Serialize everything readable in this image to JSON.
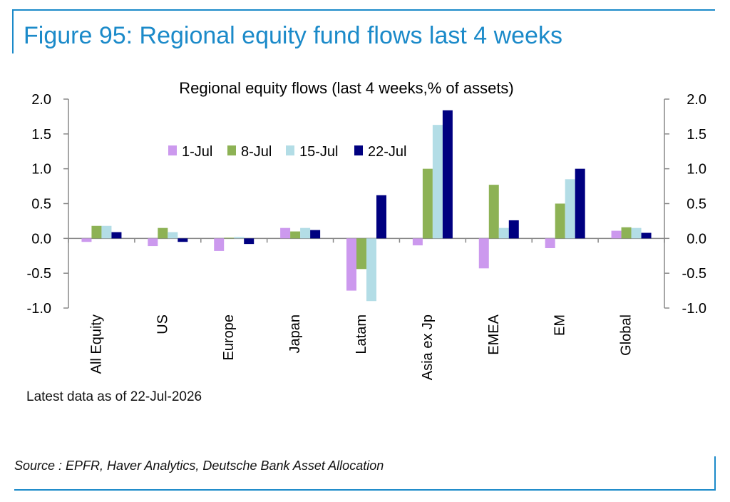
{
  "figure": {
    "title": "Figure 95: Regional equity fund flows last 4 weeks",
    "note": "Latest data as of 22-Jul-2026",
    "source": "Source : EPFR, Haver Analytics, Deutsche Bank Asset Allocation"
  },
  "colors": {
    "brand": "#1b8ac9",
    "axis": "#888888",
    "text": "#000000"
  },
  "chart_data": {
    "type": "bar",
    "title": "Regional equity flows (last 4 weeks,% of assets)",
    "xlabel": "",
    "ylabel": "",
    "ylim": [
      -1.0,
      2.0
    ],
    "yticks": [
      "2.0",
      "1.5",
      "1.0",
      "0.5",
      "0.0",
      "-0.5",
      "-1.0"
    ],
    "ytick_values": [
      2.0,
      1.5,
      1.0,
      0.5,
      0.0,
      -0.5,
      -1.0
    ],
    "secondary_axis": true,
    "grid": false,
    "legend_position": "top-center",
    "categories": [
      "All Equity",
      "US",
      "Europe",
      "Japan",
      "Latam",
      "Asia ex Jp",
      "EMEA",
      "EM",
      "Global"
    ],
    "series": [
      {
        "name": "1-Jul",
        "color": "#cc99ee",
        "values": [
          -0.05,
          -0.11,
          -0.18,
          0.15,
          -0.75,
          -0.1,
          -0.43,
          -0.14,
          0.11
        ]
      },
      {
        "name": "8-Jul",
        "color": "#8db255",
        "values": [
          0.18,
          0.15,
          0.01,
          0.1,
          -0.44,
          1.0,
          0.77,
          0.5,
          0.16
        ]
      },
      {
        "name": "15-Jul",
        "color": "#b3dde6",
        "values": [
          0.18,
          0.09,
          0.02,
          0.15,
          -0.9,
          1.63,
          0.15,
          0.85,
          0.15
        ]
      },
      {
        "name": "22-Jul",
        "color": "#000080",
        "values": [
          0.09,
          -0.05,
          -0.08,
          0.12,
          0.62,
          1.84,
          0.26,
          1.0,
          0.08
        ]
      }
    ]
  }
}
